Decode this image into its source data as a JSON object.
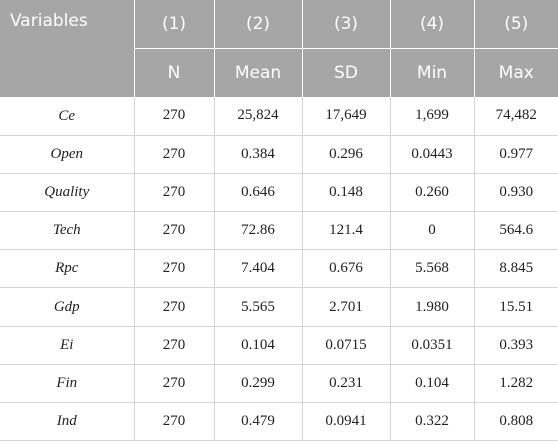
{
  "header": {
    "row1": [
      "Variables",
      "(1)",
      "(2)",
      "(3)",
      "(4)",
      "(5)"
    ],
    "row2": [
      "N",
      "Mean",
      "SD",
      "Min",
      "Max"
    ]
  },
  "rows": [
    {
      "name": "Ce",
      "n": "270",
      "mean": "25,824",
      "sd": "17,649",
      "min": "1,699",
      "max": "74,482"
    },
    {
      "name": "Open",
      "n": "270",
      "mean": "0.384",
      "sd": "0.296",
      "min": "0.0443",
      "max": "0.977"
    },
    {
      "name": "Quality",
      "n": "270",
      "mean": "0.646",
      "sd": "0.148",
      "min": "0.260",
      "max": "0.930"
    },
    {
      "name": "Tech",
      "n": "270",
      "mean": "72.86",
      "sd": "121.4",
      "min": "0",
      "max": "564.6"
    },
    {
      "name": "Rpc",
      "n": "270",
      "mean": "7.404",
      "sd": "0.676",
      "min": "5.568",
      "max": "8.845"
    },
    {
      "name": "Gdp",
      "n": "270",
      "mean": "5.565",
      "sd": "2.701",
      "min": "1.980",
      "max": "15.51"
    },
    {
      "name": "Ei",
      "n": "270",
      "mean": "0.104",
      "sd": "0.0715",
      "min": "0.0351",
      "max": "0.393"
    },
    {
      "name": "Fin",
      "n": "270",
      "mean": "0.299",
      "sd": "0.231",
      "min": "0.104",
      "max": "1.282"
    },
    {
      "name": "Ind",
      "n": "270",
      "mean": "0.479",
      "sd": "0.0941",
      "min": "0.322",
      "max": "0.808"
    }
  ]
}
